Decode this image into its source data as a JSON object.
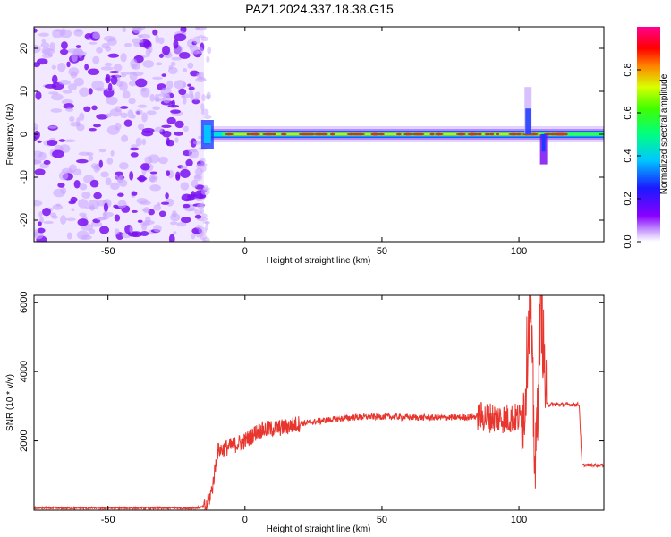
{
  "title": "PAZ1.2024.337.18.38.G15",
  "chart_data": [
    {
      "type": "heatmap",
      "xlabel": "Height of straight line (km)",
      "ylabel": "Frequency (Hz)",
      "xlim": [
        -77,
        131
      ],
      "ylim": [
        -25,
        25
      ],
      "xticks": [
        -50,
        0,
        50,
        100
      ],
      "yticks": [
        -20,
        -10,
        0,
        10,
        20
      ],
      "colorbar": {
        "label": "Normalized spectral amplitude",
        "range": [
          0,
          1
        ],
        "ticks": [
          0.0,
          0.2,
          0.4,
          0.6,
          0.8
        ],
        "colormap": "hsv-rainbow (white → purple → blue → cyan → green → yellow → red → magenta)"
      },
      "regions": [
        {
          "x_range": [
            -77,
            -15
          ],
          "description": "scattered low-amplitude noise (purple)"
        },
        {
          "x_range": [
            -15,
            131
          ],
          "freq_center": 0,
          "amplitude": "high (red/yellow) concentrated near 0 Hz"
        }
      ]
    },
    {
      "type": "line",
      "xlabel": "Height of straight line (km)",
      "ylabel": "SNR (10 * v/v)",
      "xlim": [
        -77,
        131
      ],
      "ylim": [
        0,
        6200
      ],
      "xticks": [
        -50,
        0,
        50,
        100
      ],
      "yticks": [
        2000,
        4000,
        6000
      ],
      "color": "#e8362f",
      "profile": [
        [
          -77,
          60
        ],
        [
          -20,
          60
        ],
        [
          -14,
          100
        ],
        [
          -12,
          600
        ],
        [
          -10,
          1700
        ],
        [
          -5,
          1850
        ],
        [
          0,
          2000
        ],
        [
          5,
          2300
        ],
        [
          10,
          2350
        ],
        [
          15,
          2400
        ],
        [
          20,
          2500
        ],
        [
          30,
          2600
        ],
        [
          40,
          2680
        ],
        [
          50,
          2700
        ],
        [
          60,
          2680
        ],
        [
          70,
          2670
        ],
        [
          80,
          2680
        ],
        [
          85,
          2700
        ],
        [
          95,
          2650
        ],
        [
          100,
          2650
        ],
        [
          102,
          2900
        ],
        [
          104,
          6200
        ],
        [
          106,
          1000
        ],
        [
          108,
          6200
        ],
        [
          110,
          3050
        ],
        [
          122,
          3050
        ],
        [
          123,
          1300
        ],
        [
          131,
          1300
        ]
      ]
    }
  ]
}
